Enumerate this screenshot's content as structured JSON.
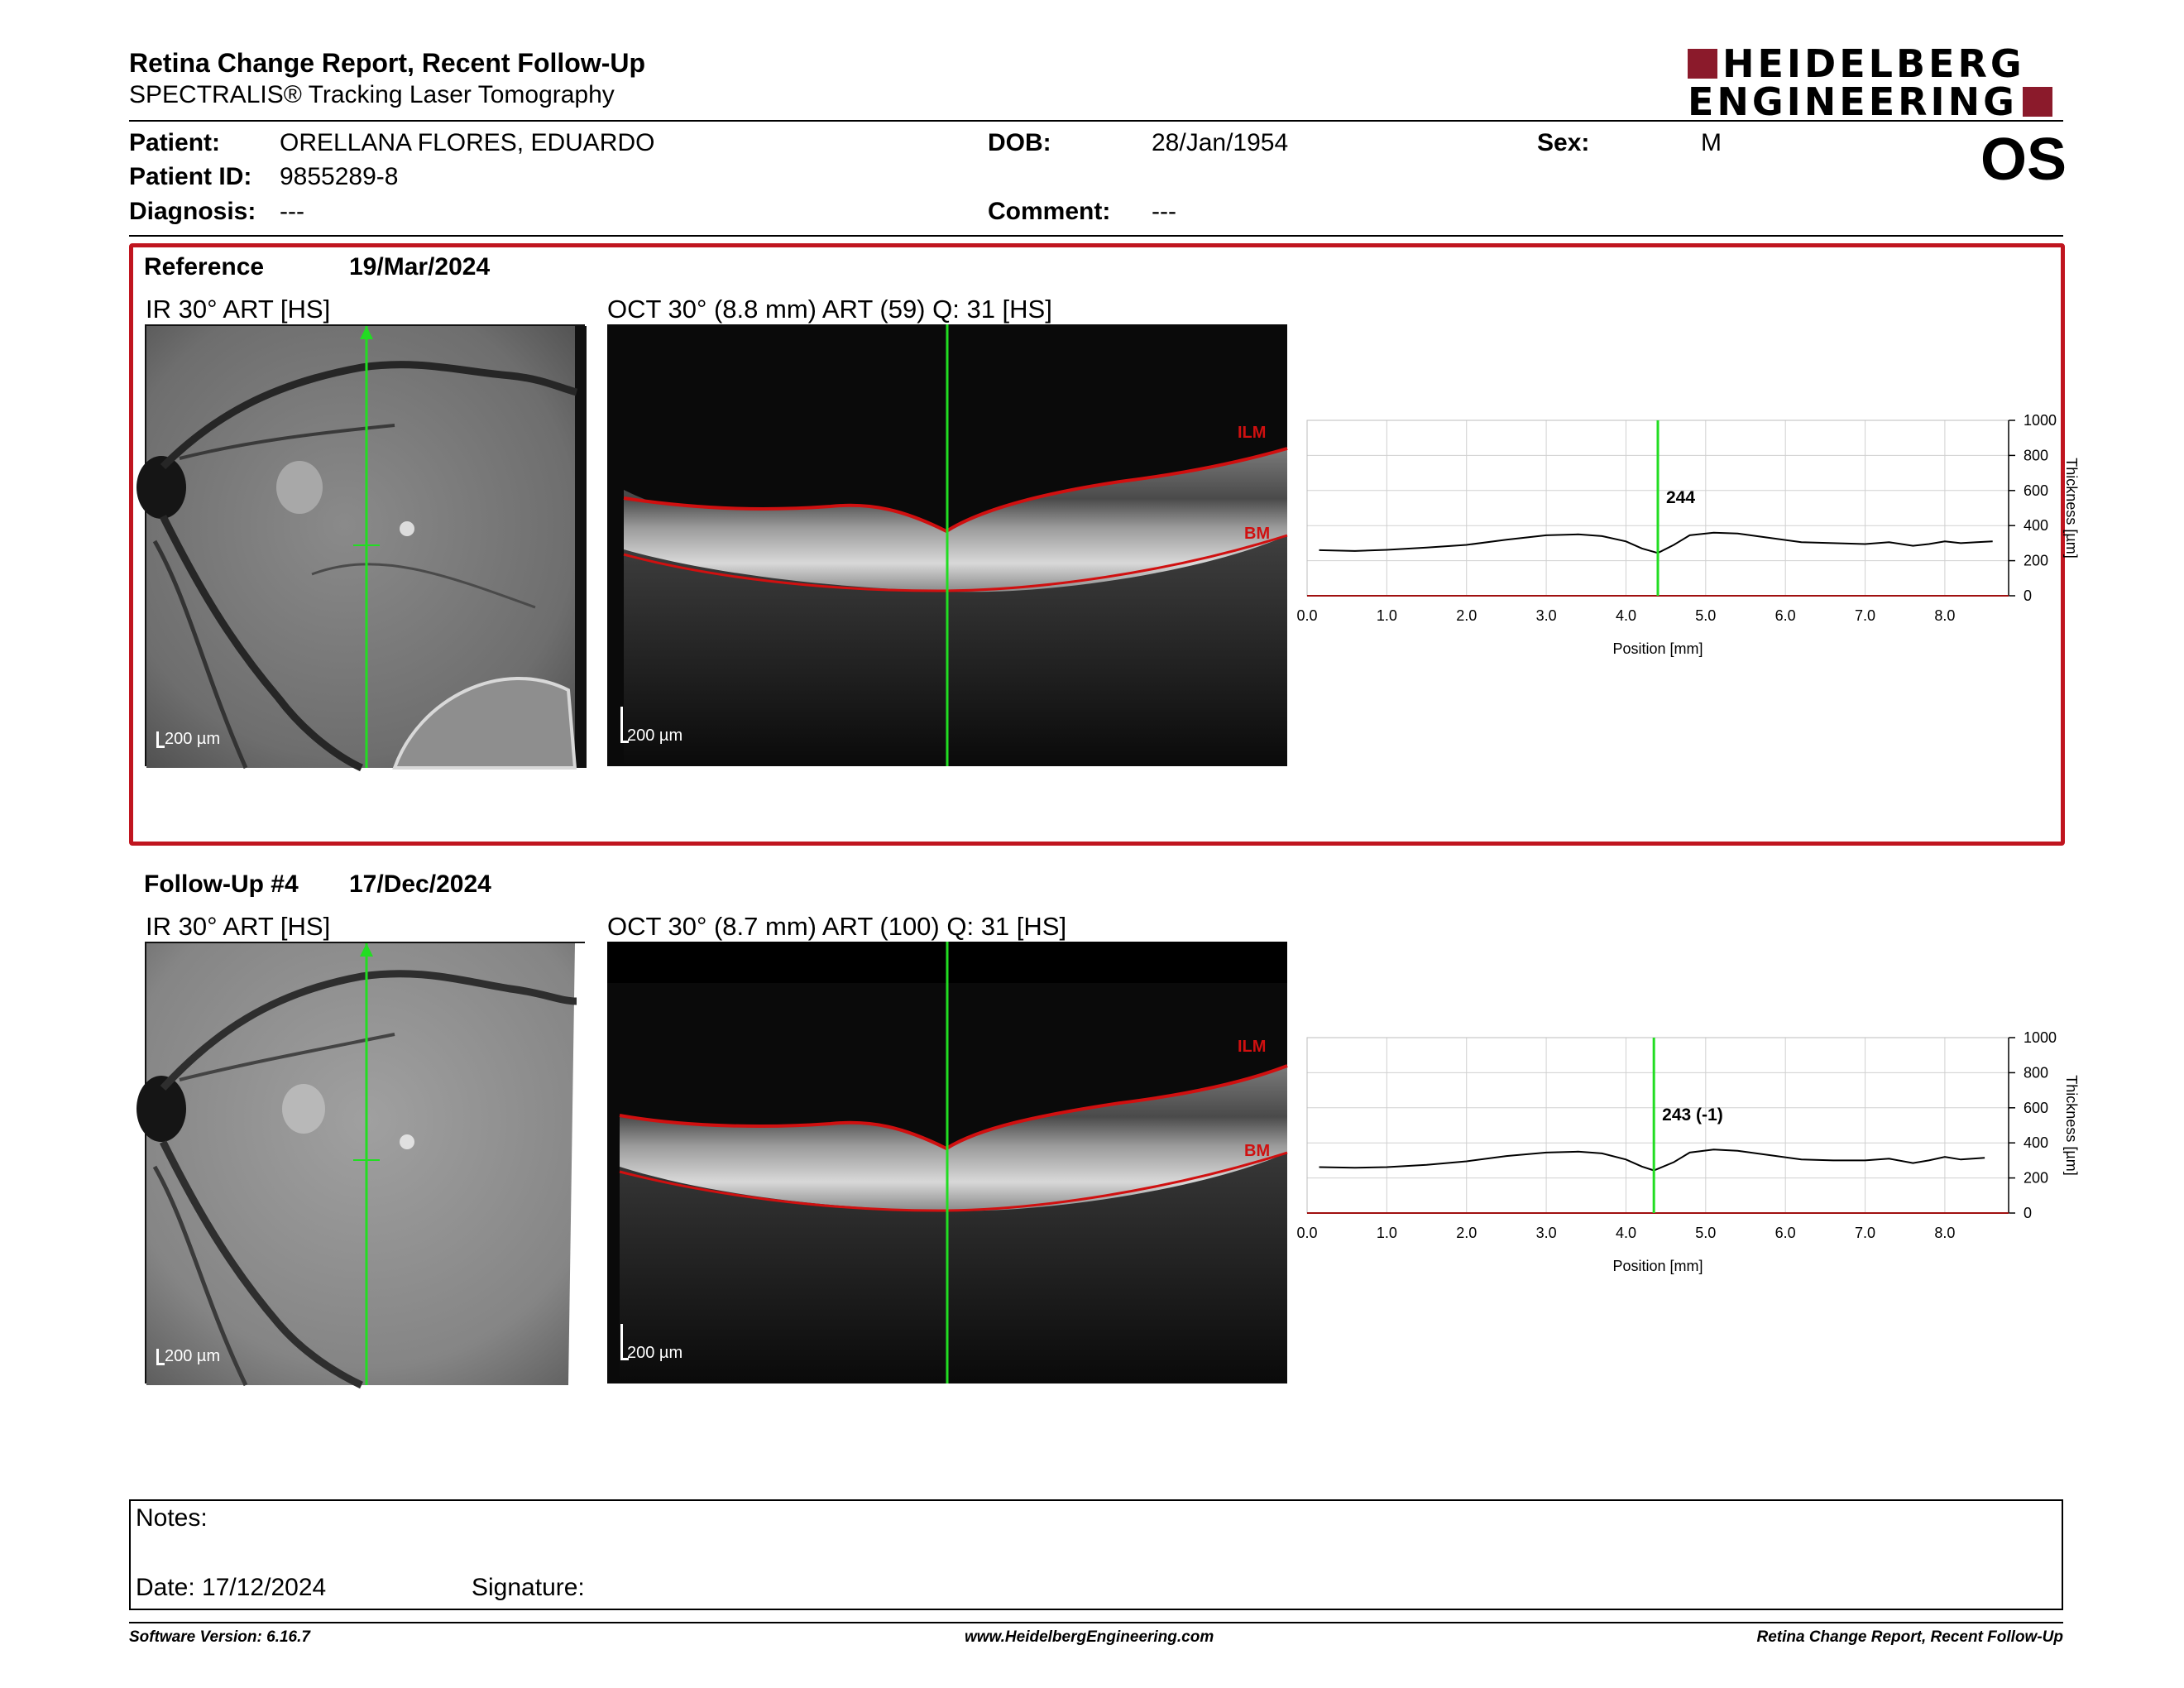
{
  "header": {
    "title": "Retina Change Report, Recent Follow-Up",
    "subtitle": "SPECTRALIS® Tracking Laser Tomography",
    "logo_line1": "HEIDELBERG",
    "logo_line2": "ENGINEERING",
    "eye": "OS"
  },
  "patient": {
    "patient_label": "Patient:",
    "patient_name": "ORELLANA FLORES, EDUARDO",
    "id_label": "Patient ID:",
    "id_value": "9855289-8",
    "diagnosis_label": "Diagnosis:",
    "diagnosis_value": "---",
    "dob_label": "DOB:",
    "dob_value": "28/Jan/1954",
    "comment_label": "Comment:",
    "comment_value": "---",
    "sex_label": "Sex:",
    "sex_value": "M"
  },
  "reference": {
    "label": "Reference",
    "date": "19/Mar/2024",
    "ir_title": "IR 30° ART [HS]",
    "oct_title": "OCT 30° (8.8 mm) ART (59) Q: 31 [HS]",
    "scale_bar": "200 µm",
    "ilm_label": "ILM",
    "bm_label": "BM"
  },
  "followup": {
    "label": "Follow-Up #4",
    "date": "17/Dec/2024",
    "ir_title": "IR 30° ART [HS]",
    "oct_title": "OCT 30° (8.7 mm) ART (100) Q: 31 [HS]",
    "scale_bar": "200 µm",
    "ilm_label": "ILM",
    "bm_label": "BM"
  },
  "chart_data": [
    {
      "type": "line",
      "xlabel": "Position [mm]",
      "ylabel": "Thickness [µm]",
      "xlim": [
        0,
        8.8
      ],
      "ylim": [
        0,
        1000
      ],
      "xticks": [
        "0.0",
        "1.0",
        "2.0",
        "3.0",
        "4.0",
        "5.0",
        "6.0",
        "7.0",
        "8.0"
      ],
      "yticks": [
        "0",
        "200",
        "400",
        "600",
        "800",
        "1000"
      ],
      "grid": true,
      "marker_x": 4.4,
      "marker_label": "244",
      "series": [
        {
          "x": [
            0.15,
            0.6,
            1.0,
            1.5,
            2.0,
            2.5,
            3.0,
            3.4,
            3.7,
            4.0,
            4.2,
            4.4,
            4.6,
            4.8,
            5.1,
            5.4,
            5.8,
            6.2,
            6.6,
            7.0,
            7.3,
            7.6,
            7.8,
            8.0,
            8.2,
            8.4,
            8.6
          ],
          "y": [
            260,
            255,
            262,
            275,
            290,
            320,
            345,
            350,
            340,
            310,
            270,
            244,
            290,
            345,
            360,
            355,
            330,
            305,
            300,
            295,
            305,
            285,
            295,
            310,
            300,
            305,
            310
          ]
        }
      ]
    },
    {
      "type": "line",
      "xlabel": "Position [mm]",
      "ylabel": "Thickness [µm]",
      "xlim": [
        0,
        8.8
      ],
      "ylim": [
        0,
        1000
      ],
      "xticks": [
        "0.0",
        "1.0",
        "2.0",
        "3.0",
        "4.0",
        "5.0",
        "6.0",
        "7.0",
        "8.0"
      ],
      "yticks": [
        "0",
        "200",
        "400",
        "600",
        "800",
        "1000"
      ],
      "grid": true,
      "marker_x": 4.35,
      "marker_label": "243 (-1)",
      "series": [
        {
          "x": [
            0.15,
            0.6,
            1.0,
            1.5,
            2.0,
            2.5,
            3.0,
            3.4,
            3.7,
            4.0,
            4.2,
            4.35,
            4.6,
            4.8,
            5.1,
            5.4,
            5.8,
            6.2,
            6.6,
            7.0,
            7.3,
            7.6,
            7.8,
            8.0,
            8.2,
            8.5
          ],
          "y": [
            262,
            258,
            262,
            275,
            295,
            325,
            345,
            350,
            340,
            305,
            265,
            243,
            290,
            345,
            362,
            355,
            330,
            305,
            300,
            300,
            310,
            285,
            300,
            320,
            305,
            315
          ]
        }
      ]
    }
  ],
  "notes": {
    "notes_label": "Notes:",
    "date_label": "Date: 17/12/2024",
    "signature_label": "Signature:"
  },
  "footer": {
    "left": "Software Version: 6.16.7",
    "center": "www.HeidelbergEngineering.com",
    "right": "Retina Change Report, Recent Follow-Up"
  },
  "colors": {
    "ref_frame": "#c0151f",
    "scan_line": "#22dd22",
    "segmentation": "#d01010",
    "logo": "#8b1a2b"
  }
}
